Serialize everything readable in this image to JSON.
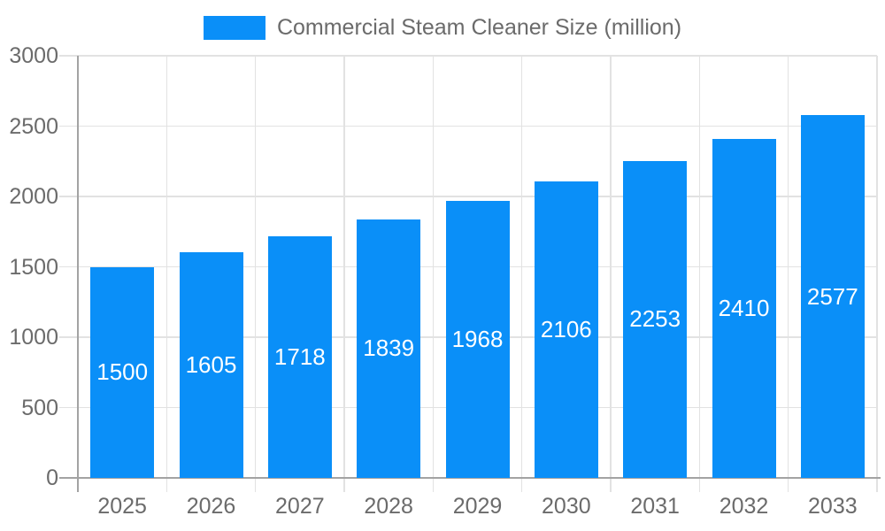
{
  "chart_data": {
    "type": "bar",
    "series_name": "Commercial Steam Cleaner Size (million)",
    "categories": [
      "2025",
      "2026",
      "2027",
      "2028",
      "2029",
      "2030",
      "2031",
      "2032",
      "2033"
    ],
    "values": [
      1500,
      1605,
      1718,
      1839,
      1968,
      2106,
      2253,
      2410,
      2577
    ],
    "ylim": [
      0,
      3000
    ],
    "yticks": [
      0,
      500,
      1000,
      1500,
      2000,
      2500,
      3000
    ],
    "grid": true,
    "legend_position": "top-center",
    "show_bar_labels": true,
    "colors": {
      "bar": "#0a8ff8",
      "axis_text": "#6b6b6b",
      "bar_label_text": "#ffffff",
      "grid_line": "#e2e2e2",
      "axis_line": "#a3a3a3",
      "background": "#ffffff"
    }
  }
}
